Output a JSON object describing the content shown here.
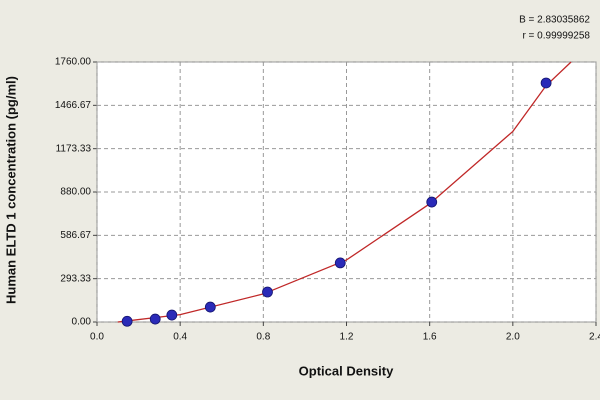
{
  "chart_data": {
    "type": "scatter",
    "annotations": [
      "B = 2.83035862",
      "r = 0.99999258"
    ],
    "x_label": "Optical Density",
    "y_label": "Human ELTD 1 concentration (pg/ml)",
    "x": [
      0.145,
      0.28,
      0.36,
      0.545,
      0.82,
      1.17,
      1.61,
      2.16
    ],
    "series": [
      {
        "color": "#2a2ab8",
        "values": [
          5,
          20,
          47,
          101,
          203,
          400,
          812,
          1618
        ]
      }
    ],
    "curve": {
      "color": "#c02828",
      "x": [
        0.1,
        0.4,
        0.8,
        1.2,
        1.6,
        2.0,
        2.16,
        2.28
      ],
      "y": [
        0,
        50,
        190,
        420,
        800,
        1290,
        1600,
        1760
      ]
    },
    "xlim": [
      0,
      2.4
    ],
    "ylim": [
      0,
      1760
    ],
    "xticks": [
      {
        "value": 0,
        "label": "0.0"
      },
      0.4,
      0.8,
      1.2,
      1.6,
      {
        "value": 2,
        "label": "2.0"
      },
      2.4
    ],
    "yticks": [
      {
        "value": 0,
        "label": "0.00"
      },
      293.33,
      586.67,
      {
        "value": 880,
        "label": "880.00"
      },
      1173.33,
      1466.67,
      {
        "value": 1760,
        "label": "1760.00"
      }
    ],
    "grid": true
  }
}
